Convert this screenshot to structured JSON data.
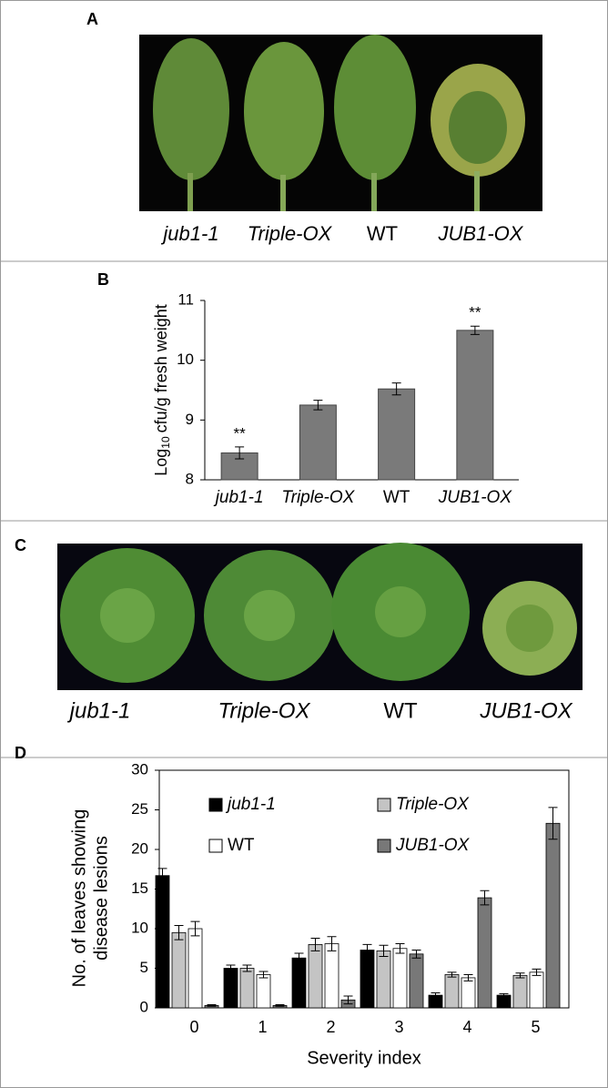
{
  "panels": {
    "A": {
      "label": "A",
      "captions": [
        "jub1-1",
        "Triple-OX",
        "WT",
        "JUB1-OX"
      ]
    },
    "C": {
      "label": "C",
      "captions": [
        "jub1-1",
        "Triple-OX",
        "WT",
        "JUB1-OX"
      ]
    }
  },
  "chart_data": [
    {
      "type": "bar",
      "panel_label": "B",
      "y_label": [
        "Log",
        "10",
        "cfu/g fresh weight"
      ],
      "categories": [
        "jub1-1",
        "Triple-OX",
        "WT",
        "JUB1-OX"
      ],
      "values": [
        8.45,
        9.25,
        9.52,
        10.5
      ],
      "errors": [
        0.1,
        0.08,
        0.1,
        0.07
      ],
      "significance": [
        "**",
        null,
        null,
        "**"
      ],
      "color": "#7a7a7a",
      "ylim": [
        8,
        11
      ],
      "yticks": [
        8,
        9,
        10,
        11
      ]
    },
    {
      "type": "grouped_bar",
      "panel_label": "D",
      "y_label": [
        "No. of leaves showing",
        "disease lesions"
      ],
      "x_label": "Severity index",
      "categories": [
        "0",
        "1",
        "2",
        "3",
        "4",
        "5"
      ],
      "series": [
        {
          "name": "jub1-1",
          "color": "#000000",
          "values": [
            16.7,
            5.0,
            6.3,
            7.3,
            1.6,
            1.6
          ],
          "errors": [
            0.9,
            0.4,
            0.6,
            0.7,
            0.3,
            0.2
          ]
        },
        {
          "name": "Triple-OX",
          "color": "#c4c4c4",
          "values": [
            9.5,
            5.0,
            8.0,
            7.2,
            4.2,
            4.1
          ],
          "errors": [
            0.9,
            0.4,
            0.8,
            0.7,
            0.3,
            0.3
          ]
        },
        {
          "name": "WT",
          "color": "#ffffff",
          "values": [
            10.0,
            4.2,
            8.1,
            7.5,
            3.8,
            4.5
          ],
          "errors": [
            0.9,
            0.4,
            0.9,
            0.6,
            0.4,
            0.4
          ]
        },
        {
          "name": "JUB1-OX",
          "color": "#787878",
          "values": [
            0.3,
            0.3,
            1.0,
            6.8,
            13.9,
            23.3
          ],
          "errors": [
            0.1,
            0.1,
            0.5,
            0.5,
            0.9,
            2.0
          ]
        }
      ],
      "ylim": [
        0,
        30
      ],
      "yticks": [
        0,
        5,
        10,
        15,
        20,
        25,
        30
      ]
    }
  ]
}
